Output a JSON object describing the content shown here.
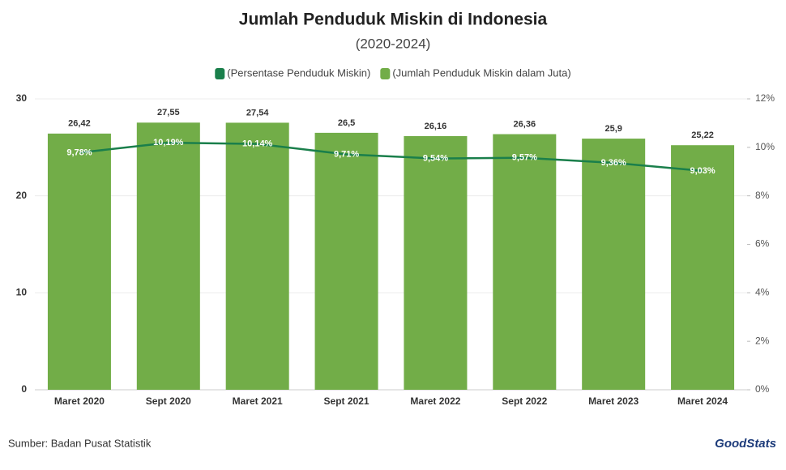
{
  "chart_data": {
    "type": "bar",
    "title": "Jumlah Penduduk Miskin di Indonesia",
    "subtitle": "(2020-2024)",
    "categories": [
      "Maret 2020",
      "Sept 2020",
      "Maret 2021",
      "Sept 2021",
      "Maret 2022",
      "Sept 2022",
      "Maret 2023",
      "Maret 2024"
    ],
    "series": [
      {
        "name": "(Persentase Penduduk Miskin)",
        "type": "line",
        "axis": "y2",
        "color": "#1a7f4b",
        "values": [
          9.78,
          10.19,
          10.14,
          9.71,
          9.54,
          9.57,
          9.36,
          9.03
        ],
        "value_labels": [
          "9,78%",
          "10,19%",
          "10,14%",
          "9,71%",
          "9,54%",
          "9,57%",
          "9,36%",
          "9,03%"
        ]
      },
      {
        "name": "(Jumlah Penduduk Miskin dalam Juta)",
        "type": "bar",
        "color": "#72ad48",
        "values": [
          26.42,
          27.55,
          27.54,
          26.5,
          26.16,
          26.36,
          25.9,
          25.22
        ],
        "value_labels": [
          "26,42",
          "27,55",
          "27,54",
          "26,5",
          "26,16",
          "26,36",
          "25,9",
          "25,22"
        ]
      }
    ],
    "ylim": [
      0,
      30
    ],
    "yticks": [
      0,
      10,
      20,
      30
    ],
    "y2lim": [
      0,
      12
    ],
    "y2ticks": [
      {
        "value": 0,
        "label": "0%"
      },
      {
        "value": 2,
        "label": "2%"
      },
      {
        "value": 4,
        "label": "4%"
      },
      {
        "value": 6,
        "label": "6%"
      },
      {
        "value": 8,
        "label": "8%"
      },
      {
        "value": 10,
        "label": "10%"
      },
      {
        "value": 12,
        "label": "12%"
      }
    ],
    "grid": true,
    "source": "Sumber: Badan Pusat Statistik",
    "logo": "GoodStats"
  }
}
